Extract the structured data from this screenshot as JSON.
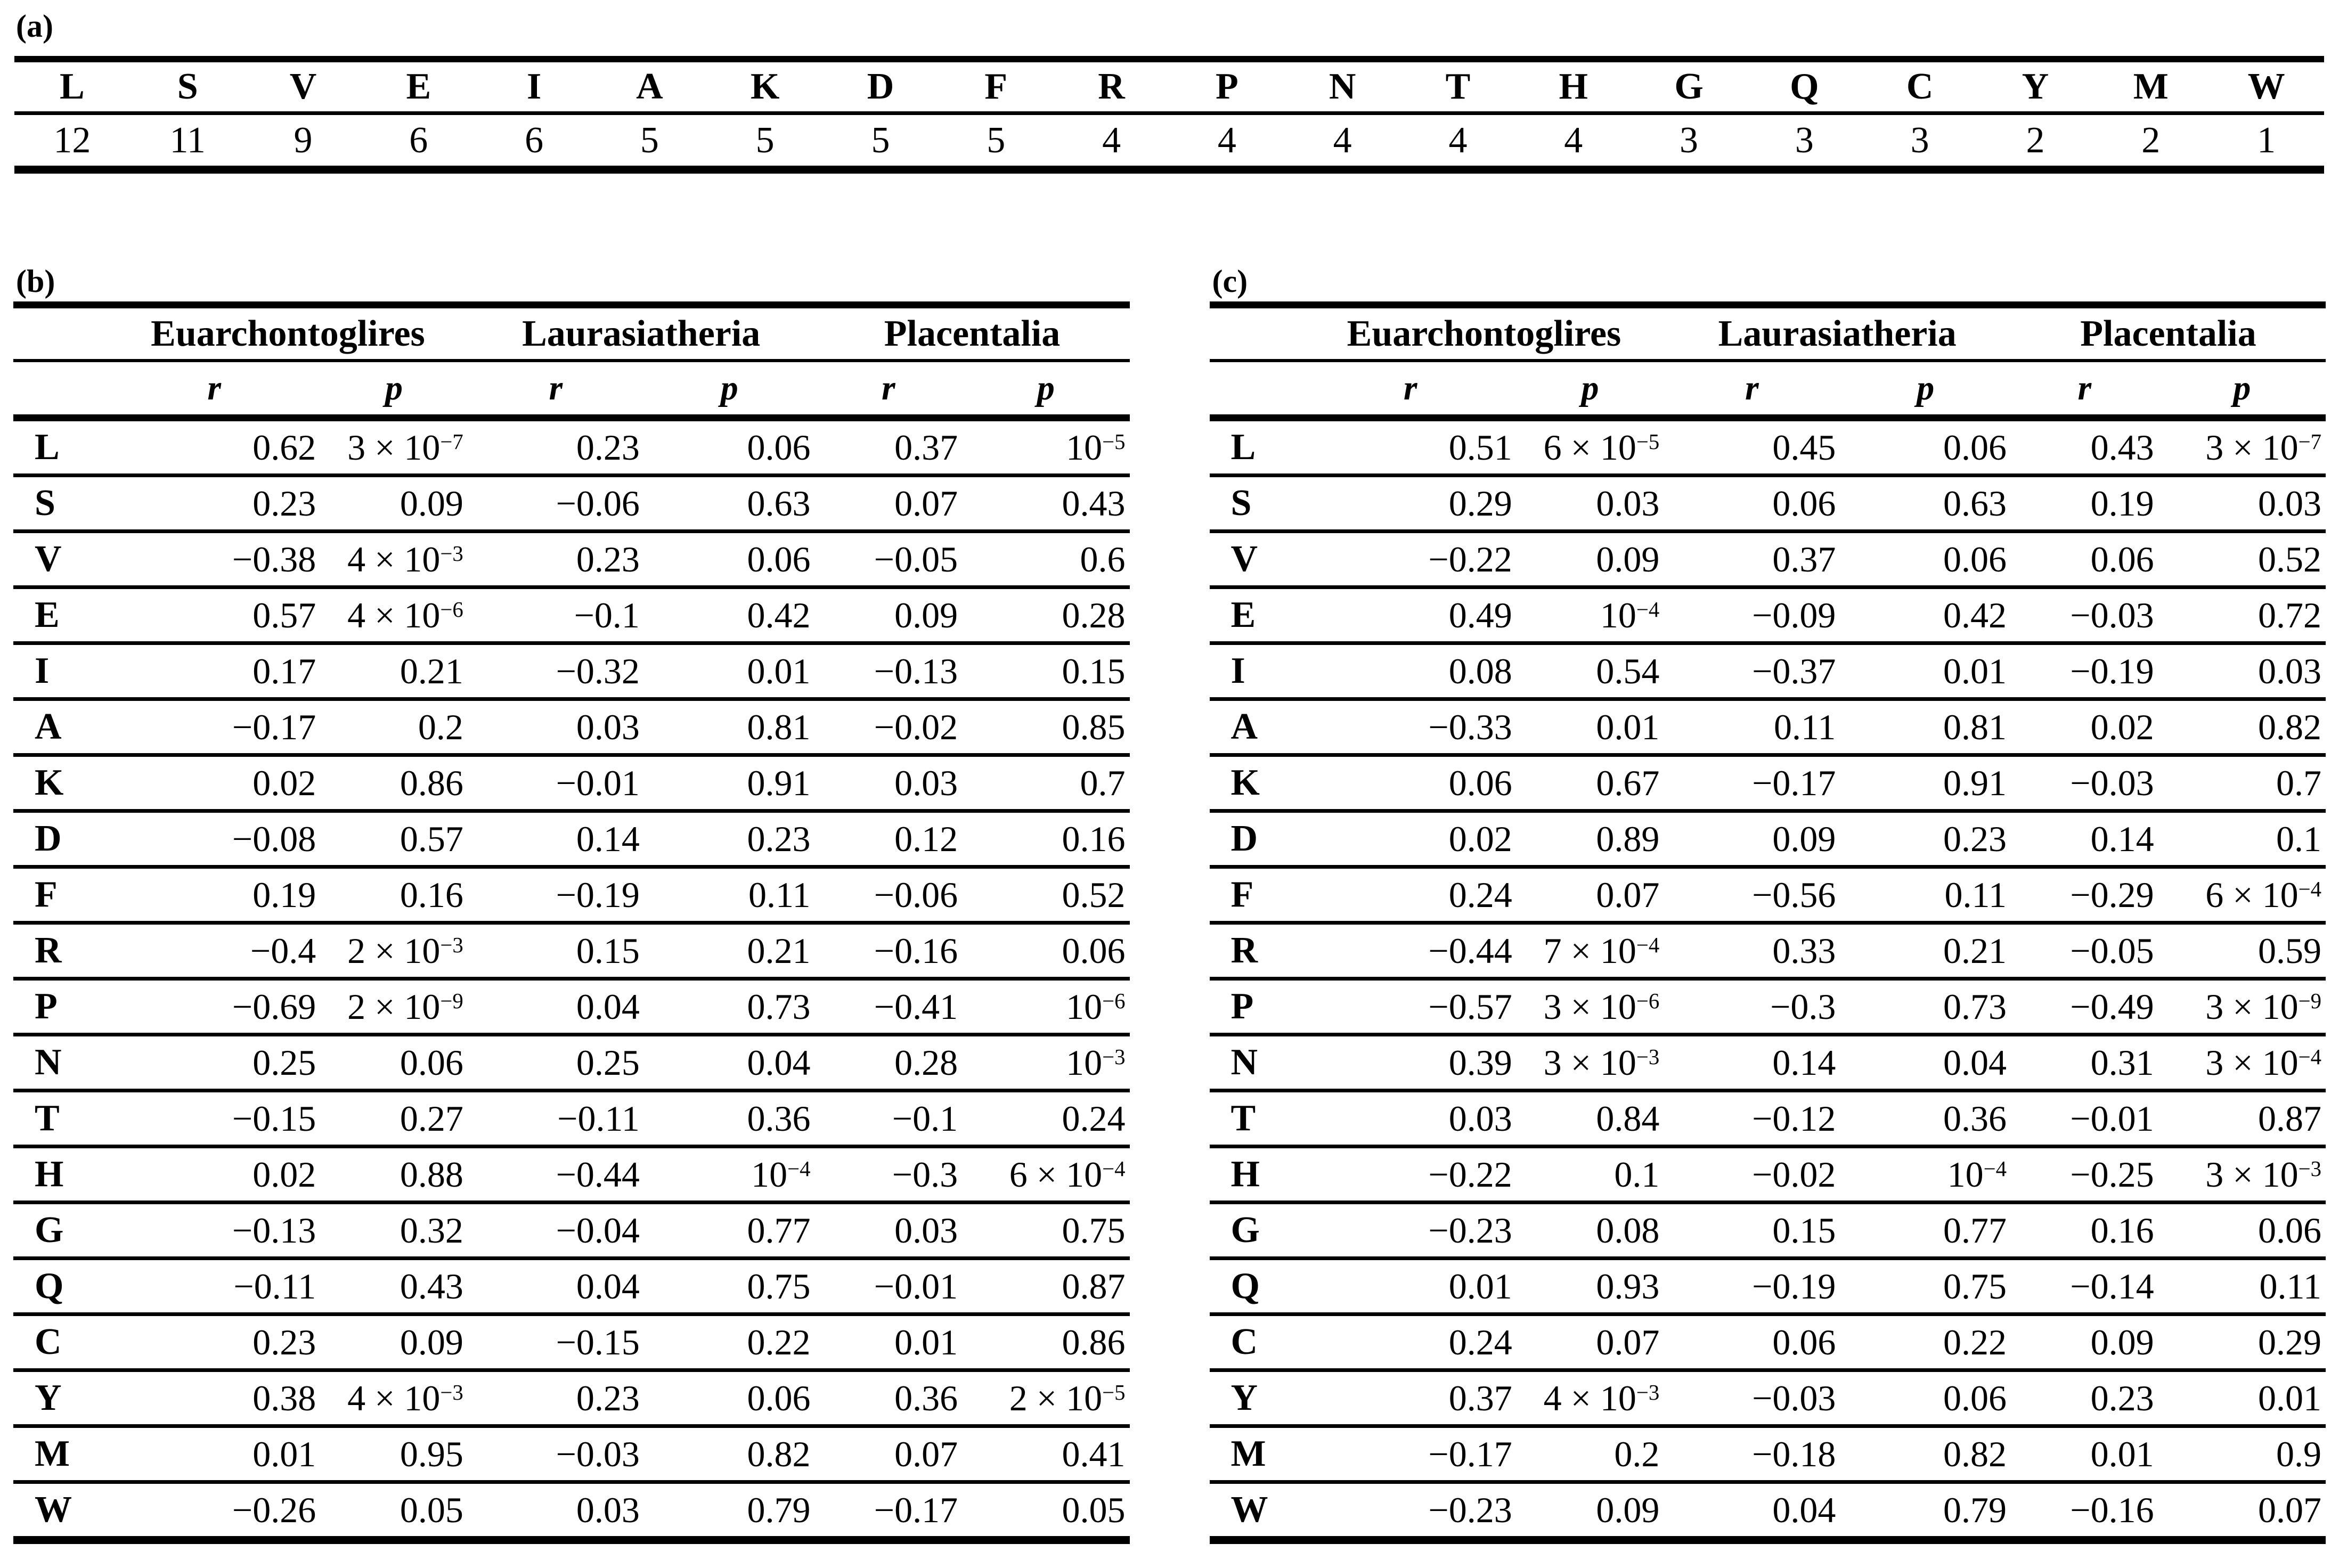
{
  "panel_a": {
    "label": "(a)",
    "letters": [
      "L",
      "S",
      "V",
      "E",
      "I",
      "A",
      "K",
      "D",
      "F",
      "R",
      "P",
      "N",
      "T",
      "H",
      "G",
      "Q",
      "C",
      "Y",
      "M",
      "W"
    ],
    "counts": [
      "12",
      "11",
      "9",
      "6",
      "6",
      "5",
      "5",
      "5",
      "5",
      "4",
      "4",
      "4",
      "4",
      "4",
      "3",
      "3",
      "3",
      "2",
      "2",
      "1"
    ]
  },
  "panel_b": {
    "label": "(b)",
    "groups": [
      "Euarchontoglires",
      "Laurasiatheria",
      "Placentalia"
    ],
    "stat_headers": [
      "r",
      "p",
      "r",
      "p",
      "r",
      "p"
    ],
    "rows": [
      {
        "letter": "L",
        "values": [
          "0.62",
          "3 × 10^−7",
          "0.23",
          "0.06",
          "0.37",
          "10^−5"
        ]
      },
      {
        "letter": "S",
        "values": [
          "0.23",
          "0.09",
          "−0.06",
          "0.63",
          "0.07",
          "0.43"
        ]
      },
      {
        "letter": "V",
        "values": [
          "−0.38",
          "4 × 10^−3",
          "0.23",
          "0.06",
          "−0.05",
          "0.6"
        ]
      },
      {
        "letter": "E",
        "values": [
          "0.57",
          "4 × 10^−6",
          "−0.1",
          "0.42",
          "0.09",
          "0.28"
        ]
      },
      {
        "letter": "I",
        "values": [
          "0.17",
          "0.21",
          "−0.32",
          "0.01",
          "−0.13",
          "0.15"
        ]
      },
      {
        "letter": "A",
        "values": [
          "−0.17",
          "0.2",
          "0.03",
          "0.81",
          "−0.02",
          "0.85"
        ]
      },
      {
        "letter": "K",
        "values": [
          "0.02",
          "0.86",
          "−0.01",
          "0.91",
          "0.03",
          "0.7"
        ]
      },
      {
        "letter": "D",
        "values": [
          "−0.08",
          "0.57",
          "0.14",
          "0.23",
          "0.12",
          "0.16"
        ]
      },
      {
        "letter": "F",
        "values": [
          "0.19",
          "0.16",
          "−0.19",
          "0.11",
          "−0.06",
          "0.52"
        ]
      },
      {
        "letter": "R",
        "values": [
          "−0.4",
          "2 × 10^−3",
          "0.15",
          "0.21",
          "−0.16",
          "0.06"
        ]
      },
      {
        "letter": "P",
        "values": [
          "−0.69",
          "2 × 10^−9",
          "0.04",
          "0.73",
          "−0.41",
          "10^−6"
        ]
      },
      {
        "letter": "N",
        "values": [
          "0.25",
          "0.06",
          "0.25",
          "0.04",
          "0.28",
          "10^−3"
        ]
      },
      {
        "letter": "T",
        "values": [
          "−0.15",
          "0.27",
          "−0.11",
          "0.36",
          "−0.1",
          "0.24"
        ]
      },
      {
        "letter": "H",
        "values": [
          "0.02",
          "0.88",
          "−0.44",
          "10^−4",
          "−0.3",
          "6 × 10^−4"
        ]
      },
      {
        "letter": "G",
        "values": [
          "−0.13",
          "0.32",
          "−0.04",
          "0.77",
          "0.03",
          "0.75"
        ]
      },
      {
        "letter": "Q",
        "values": [
          "−0.11",
          "0.43",
          "0.04",
          "0.75",
          "−0.01",
          "0.87"
        ]
      },
      {
        "letter": "C",
        "values": [
          "0.23",
          "0.09",
          "−0.15",
          "0.22",
          "0.01",
          "0.86"
        ]
      },
      {
        "letter": "Y",
        "values": [
          "0.38",
          "4 × 10^−3",
          "0.23",
          "0.06",
          "0.36",
          "2 × 10^−5"
        ]
      },
      {
        "letter": "M",
        "values": [
          "0.01",
          "0.95",
          "−0.03",
          "0.82",
          "0.07",
          "0.41"
        ]
      },
      {
        "letter": "W",
        "values": [
          "−0.26",
          "0.05",
          "0.03",
          "0.79",
          "−0.17",
          "0.05"
        ]
      }
    ]
  },
  "panel_c": {
    "label": "(c)",
    "groups": [
      "Euarchontoglires",
      "Laurasiatheria",
      "Placentalia"
    ],
    "stat_headers": [
      "r",
      "p",
      "r",
      "p",
      "r",
      "p"
    ],
    "rows": [
      {
        "letter": "L",
        "values": [
          "0.51",
          "6 × 10^−5",
          "0.45",
          "0.06",
          "0.43",
          "3 × 10^−7"
        ]
      },
      {
        "letter": "S",
        "values": [
          "0.29",
          "0.03",
          "0.06",
          "0.63",
          "0.19",
          "0.03"
        ]
      },
      {
        "letter": "V",
        "values": [
          "−0.22",
          "0.09",
          "0.37",
          "0.06",
          "0.06",
          "0.52"
        ]
      },
      {
        "letter": "E",
        "values": [
          "0.49",
          "10^−4",
          "−0.09",
          "0.42",
          "−0.03",
          "0.72"
        ]
      },
      {
        "letter": "I",
        "values": [
          "0.08",
          "0.54",
          "−0.37",
          "0.01",
          "−0.19",
          "0.03"
        ]
      },
      {
        "letter": "A",
        "values": [
          "−0.33",
          "0.01",
          "0.11",
          "0.81",
          "0.02",
          "0.82"
        ]
      },
      {
        "letter": "K",
        "values": [
          "0.06",
          "0.67",
          "−0.17",
          "0.91",
          "−0.03",
          "0.7"
        ]
      },
      {
        "letter": "D",
        "values": [
          "0.02",
          "0.89",
          "0.09",
          "0.23",
          "0.14",
          "0.1"
        ]
      },
      {
        "letter": "F",
        "values": [
          "0.24",
          "0.07",
          "−0.56",
          "0.11",
          "−0.29",
          "6 × 10^−4"
        ]
      },
      {
        "letter": "R",
        "values": [
          "−0.44",
          "7 × 10^−4",
          "0.33",
          "0.21",
          "−0.05",
          "0.59"
        ]
      },
      {
        "letter": "P",
        "values": [
          "−0.57",
          "3 × 10^−6",
          "−0.3",
          "0.73",
          "−0.49",
          "3 × 10^−9"
        ]
      },
      {
        "letter": "N",
        "values": [
          "0.39",
          "3 × 10^−3",
          "0.14",
          "0.04",
          "0.31",
          "3 × 10^−4"
        ]
      },
      {
        "letter": "T",
        "values": [
          "0.03",
          "0.84",
          "−0.12",
          "0.36",
          "−0.01",
          "0.87"
        ]
      },
      {
        "letter": "H",
        "values": [
          "−0.22",
          "0.1",
          "−0.02",
          "10^−4",
          "−0.25",
          "3 × 10^−3"
        ]
      },
      {
        "letter": "G",
        "values": [
          "−0.23",
          "0.08",
          "0.15",
          "0.77",
          "0.16",
          "0.06"
        ]
      },
      {
        "letter": "Q",
        "values": [
          "0.01",
          "0.93",
          "−0.19",
          "0.75",
          "−0.14",
          "0.11"
        ]
      },
      {
        "letter": "C",
        "values": [
          "0.24",
          "0.07",
          "0.06",
          "0.22",
          "0.09",
          "0.29"
        ]
      },
      {
        "letter": "Y",
        "values": [
          "0.37",
          "4 × 10^−3",
          "−0.03",
          "0.06",
          "0.23",
          "0.01"
        ]
      },
      {
        "letter": "M",
        "values": [
          "−0.17",
          "0.2",
          "−0.18",
          "0.82",
          "0.01",
          "0.9"
        ]
      },
      {
        "letter": "W",
        "values": [
          "−0.23",
          "0.09",
          "0.04",
          "0.79",
          "−0.16",
          "0.07"
        ]
      }
    ]
  }
}
